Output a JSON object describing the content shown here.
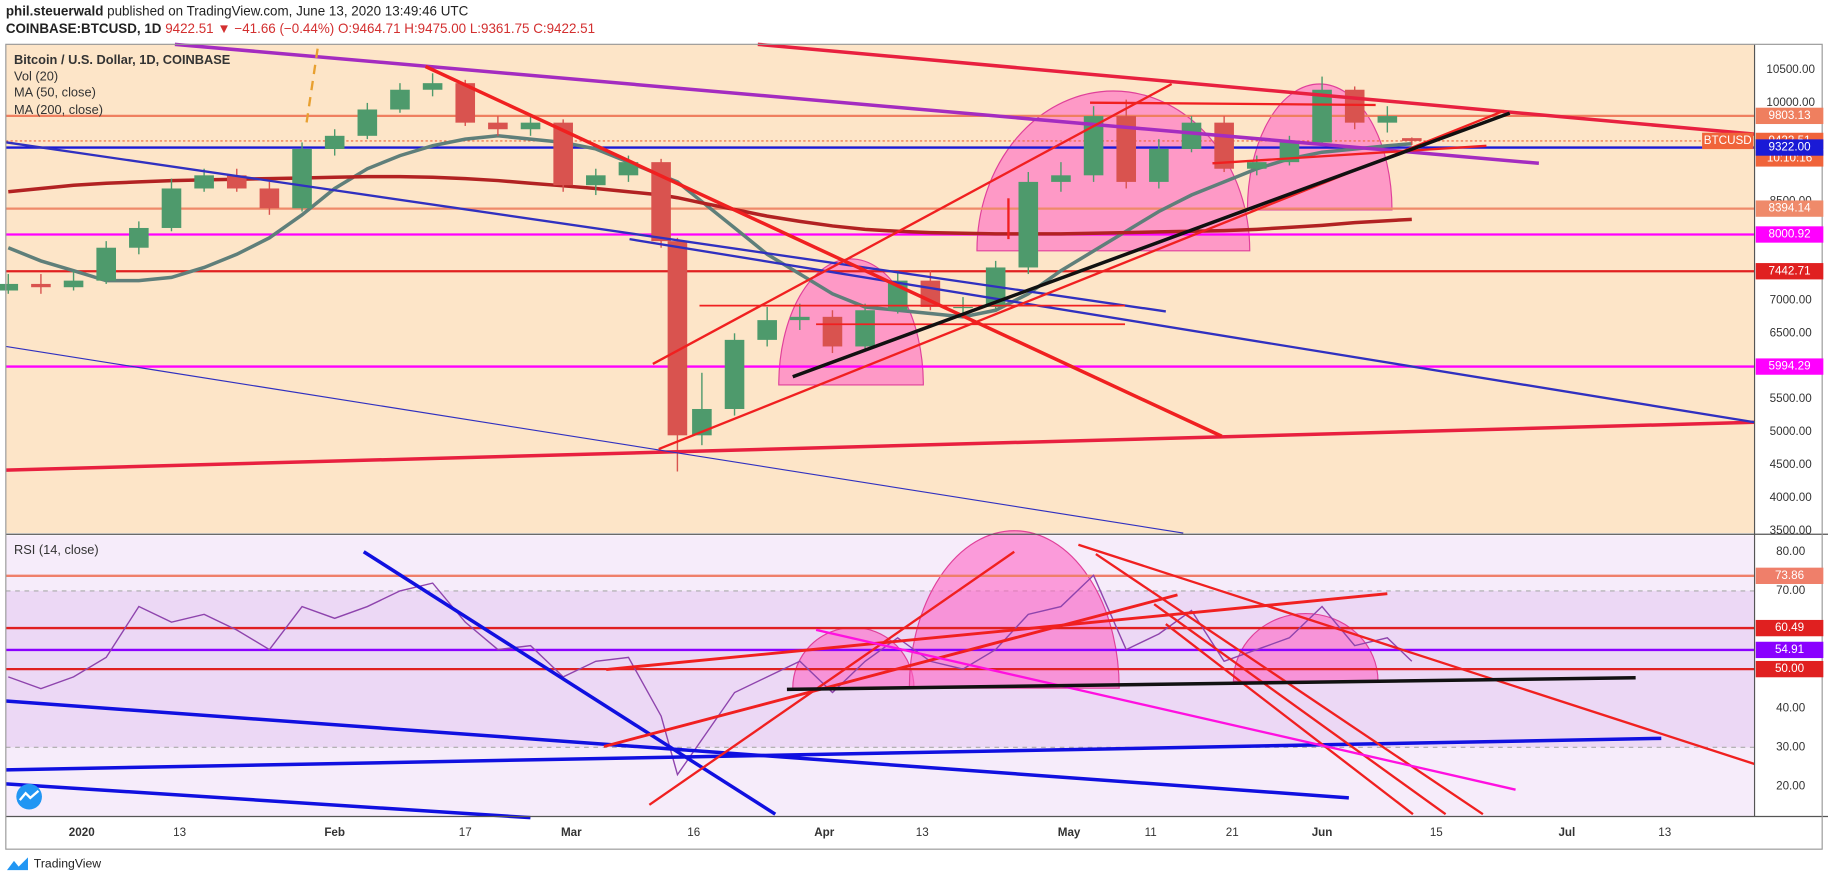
{
  "header": {
    "author": "phil.steuerwald",
    "published": "published on TradingView.com, June 13, 2020 13:49:46 UTC",
    "symbol": "COINBASE:BTCUSD, 1D",
    "last": "9422.51",
    "change": "▼ −41.66 (−0.44%)",
    "ohlc": "O:9464.71 H:9475.00 L:9361.75 C:9422.51"
  },
  "chart_data": [
    {
      "type": "candlestick",
      "title": "Bitcoin / U.S. Dollar, 1D, COINBASE",
      "volume_label": "Vol (20)",
      "up_color": "#4e9a6c",
      "down_color": "#d9534f",
      "x": [
        -9,
        -5,
        -1,
        3,
        7,
        11,
        15,
        19,
        23,
        27,
        31,
        35,
        39,
        43,
        47,
        51,
        55,
        59,
        63,
        67,
        71,
        73,
        76,
        80,
        84,
        88,
        92,
        96,
        100,
        104,
        108,
        112,
        116,
        120,
        124,
        128,
        132,
        136,
        140,
        144,
        148,
        152,
        156,
        160,
        163
      ],
      "open": [
        7150,
        7250,
        7200,
        7300,
        7800,
        8100,
        8700,
        8900,
        8700,
        8400,
        9300,
        9500,
        9900,
        10200,
        10300,
        9700,
        9600,
        9700,
        8750,
        8900,
        9100,
        7900,
        4950,
        5350,
        6400,
        6700,
        6750,
        6300,
        6850,
        7300,
        6900,
        6900,
        7500,
        8800,
        8900,
        9800,
        8800,
        9300,
        9700,
        9000,
        9100,
        9400,
        10200,
        9700,
        9464.71
      ],
      "high": [
        7400,
        7400,
        7450,
        7900,
        8200,
        8850,
        9000,
        9000,
        8800,
        9400,
        9600,
        10000,
        10300,
        10450,
        10350,
        9800,
        9800,
        9750,
        9000,
        9200,
        9150,
        7950,
        5900,
        6500,
        6900,
        6950,
        6850,
        6950,
        7450,
        7450,
        7050,
        7600,
        8950,
        9100,
        9950,
        10050,
        9450,
        9800,
        9800,
        9200,
        9500,
        10400,
        10250,
        9950,
        9475
      ],
      "low": [
        7100,
        7100,
        7150,
        7250,
        7700,
        8050,
        8650,
        8650,
        8300,
        8350,
        9200,
        9450,
        9850,
        10100,
        9650,
        9500,
        9500,
        8650,
        8600,
        8800,
        7800,
        4400,
        4800,
        5250,
        6300,
        6550,
        6200,
        6250,
        6800,
        6850,
        6750,
        6850,
        7400,
        8650,
        8800,
        8700,
        8700,
        9250,
        8950,
        8900,
        9050,
        9350,
        9600,
        9550,
        9361.75
      ],
      "close": [
        7250,
        7200,
        7300,
        7800,
        8100,
        8700,
        8900,
        8700,
        8400,
        9300,
        9500,
        9900,
        10200,
        10300,
        9700,
        9600,
        9700,
        8750,
        8900,
        9100,
        7900,
        4950,
        5350,
        6400,
        6700,
        6750,
        6300,
        6850,
        7300,
        6900,
        6900,
        7500,
        8800,
        8900,
        9800,
        8800,
        9300,
        9700,
        9000,
        9100,
        9400,
        10200,
        9700,
        9800,
        9422.51
      ],
      "series": [
        {
          "name": "MA (50, close)",
          "color": "#5f7f7a",
          "values": [
            7800,
            7600,
            7450,
            7300,
            7300,
            7350,
            7500,
            7700,
            7950,
            8300,
            8700,
            9000,
            9200,
            9350,
            9450,
            9500,
            9450,
            9400,
            9300,
            9100,
            8900,
            8800,
            8500,
            8100,
            7700,
            7400,
            7100,
            6900,
            6850,
            6800,
            6750,
            6850,
            7100,
            7450,
            7750,
            8050,
            8350,
            8600,
            8800,
            9000,
            9150,
            9250,
            9300,
            9350,
            9380
          ]
        },
        {
          "name": "MA (200, close)",
          "color": "#b22222",
          "values": [
            8650,
            8700,
            8750,
            8780,
            8800,
            8820,
            8830,
            8840,
            8850,
            8860,
            8870,
            8880,
            8880,
            8870,
            8850,
            8820,
            8780,
            8740,
            8700,
            8650,
            8600,
            8560,
            8480,
            8380,
            8280,
            8200,
            8130,
            8080,
            8050,
            8030,
            8020,
            8010,
            8010,
            8010,
            8020,
            8030,
            8040,
            8050,
            8060,
            8080,
            8110,
            8140,
            8180,
            8210,
            8230
          ]
        }
      ],
      "levels": [
        {
          "value": 9803.13,
          "color": "#ef7f5f"
        },
        {
          "value": 9422.51,
          "color": "#f0643a",
          "tag": "BTCUSD",
          "countdown": "10:10:16"
        },
        {
          "value": {
            "value": 9322,
            "label": "9322.00"
          },
          "color": "#1a1ad6"
        },
        {
          "value": 8394.14,
          "color": "#ef8a6a"
        },
        {
          "value": 8000.92,
          "color": "#ff00ff"
        },
        {
          "value": 7442.71,
          "color": "#e02020"
        },
        {
          "value": 5994.29,
          "color": "#ff00ff"
        }
      ],
      "xlim": [
        -9.3,
        205
      ],
      "xticks": [
        {
          "value": 0,
          "label": "2020"
        },
        {
          "value": 12,
          "label": "13"
        },
        {
          "value": 31,
          "label": "Feb"
        },
        {
          "value": 47,
          "label": "17"
        },
        {
          "value": 60,
          "label": "Mar"
        },
        {
          "value": 75,
          "label": "16"
        },
        {
          "value": 91,
          "label": "Apr"
        },
        {
          "value": 103,
          "label": "13"
        },
        {
          "value": 121,
          "label": "May"
        },
        {
          "value": 131,
          "label": "11"
        },
        {
          "value": 141,
          "label": "21"
        },
        {
          "value": 152,
          "label": "Jun"
        },
        {
          "value": 166,
          "label": "15"
        },
        {
          "value": 182,
          "label": "Jul"
        },
        {
          "value": 194,
          "label": "13"
        }
      ],
      "ylim": [
        3465,
        10890
      ],
      "yticks": [
        {
          "value": 3500,
          "label": "3500.00"
        },
        {
          "value": 4000,
          "label": "4000.00"
        },
        {
          "value": 4500,
          "label": "4500.00"
        },
        {
          "value": 5000,
          "label": "5000.00"
        },
        {
          "value": 5500,
          "label": "5500.00"
        },
        {
          "value": 6500,
          "label": "6500.00"
        },
        {
          "value": 7000,
          "label": "7000.00"
        },
        {
          "value": 8500,
          "label": "8500.00"
        },
        {
          "value": 10000,
          "label": "10000.00"
        },
        {
          "value": 10500,
          "label": "10500.00"
        }
      ]
    },
    {
      "type": "line",
      "title": "RSI (14, close)",
      "color": "#8e44ad",
      "x": [
        -9,
        -5,
        -1,
        3,
        7,
        11,
        15,
        19,
        23,
        27,
        31,
        35,
        39,
        43,
        47,
        51,
        55,
        59,
        63,
        67,
        71,
        73,
        76,
        80,
        84,
        88,
        92,
        96,
        100,
        104,
        108,
        112,
        116,
        120,
        124,
        128,
        132,
        136,
        140,
        144,
        148,
        152,
        156,
        160,
        163
      ],
      "values": [
        48,
        45,
        48,
        53,
        66,
        62,
        64,
        60,
        55,
        66,
        63,
        66,
        70,
        72,
        62,
        55,
        56,
        48,
        52,
        53,
        38,
        23,
        32,
        44,
        48,
        52,
        44,
        52,
        58,
        52,
        50,
        55,
        64,
        66,
        74,
        55,
        59,
        65,
        52,
        55,
        58,
        66,
        56,
        58,
        52
      ],
      "levels": [
        {
          "value": 73.86,
          "color": "#ef7f6a"
        },
        {
          "value": 60.49,
          "color": "#e02020"
        },
        {
          "value": 54.91,
          "color": "#8a00ff"
        },
        {
          "value": {
            "value": 50,
            "label": "50.00"
          },
          "color": "#e02020"
        }
      ],
      "band": [
        30,
        70
      ],
      "xlim": [
        -9.3,
        205
      ],
      "ylim": [
        12.3,
        84.2
      ],
      "yticks": [
        {
          "value": 20,
          "label": "20.00"
        },
        {
          "value": 30,
          "label": "30.00"
        },
        {
          "value": 40,
          "label": "40.00"
        },
        {
          "value": 50,
          "label": "50.00"
        },
        {
          "value": 60,
          "label": "60.00"
        },
        {
          "value": 70,
          "label": "70.00"
        },
        {
          "value": 80,
          "label": "80.00"
        }
      ]
    }
  ],
  "footer": "TradingView"
}
